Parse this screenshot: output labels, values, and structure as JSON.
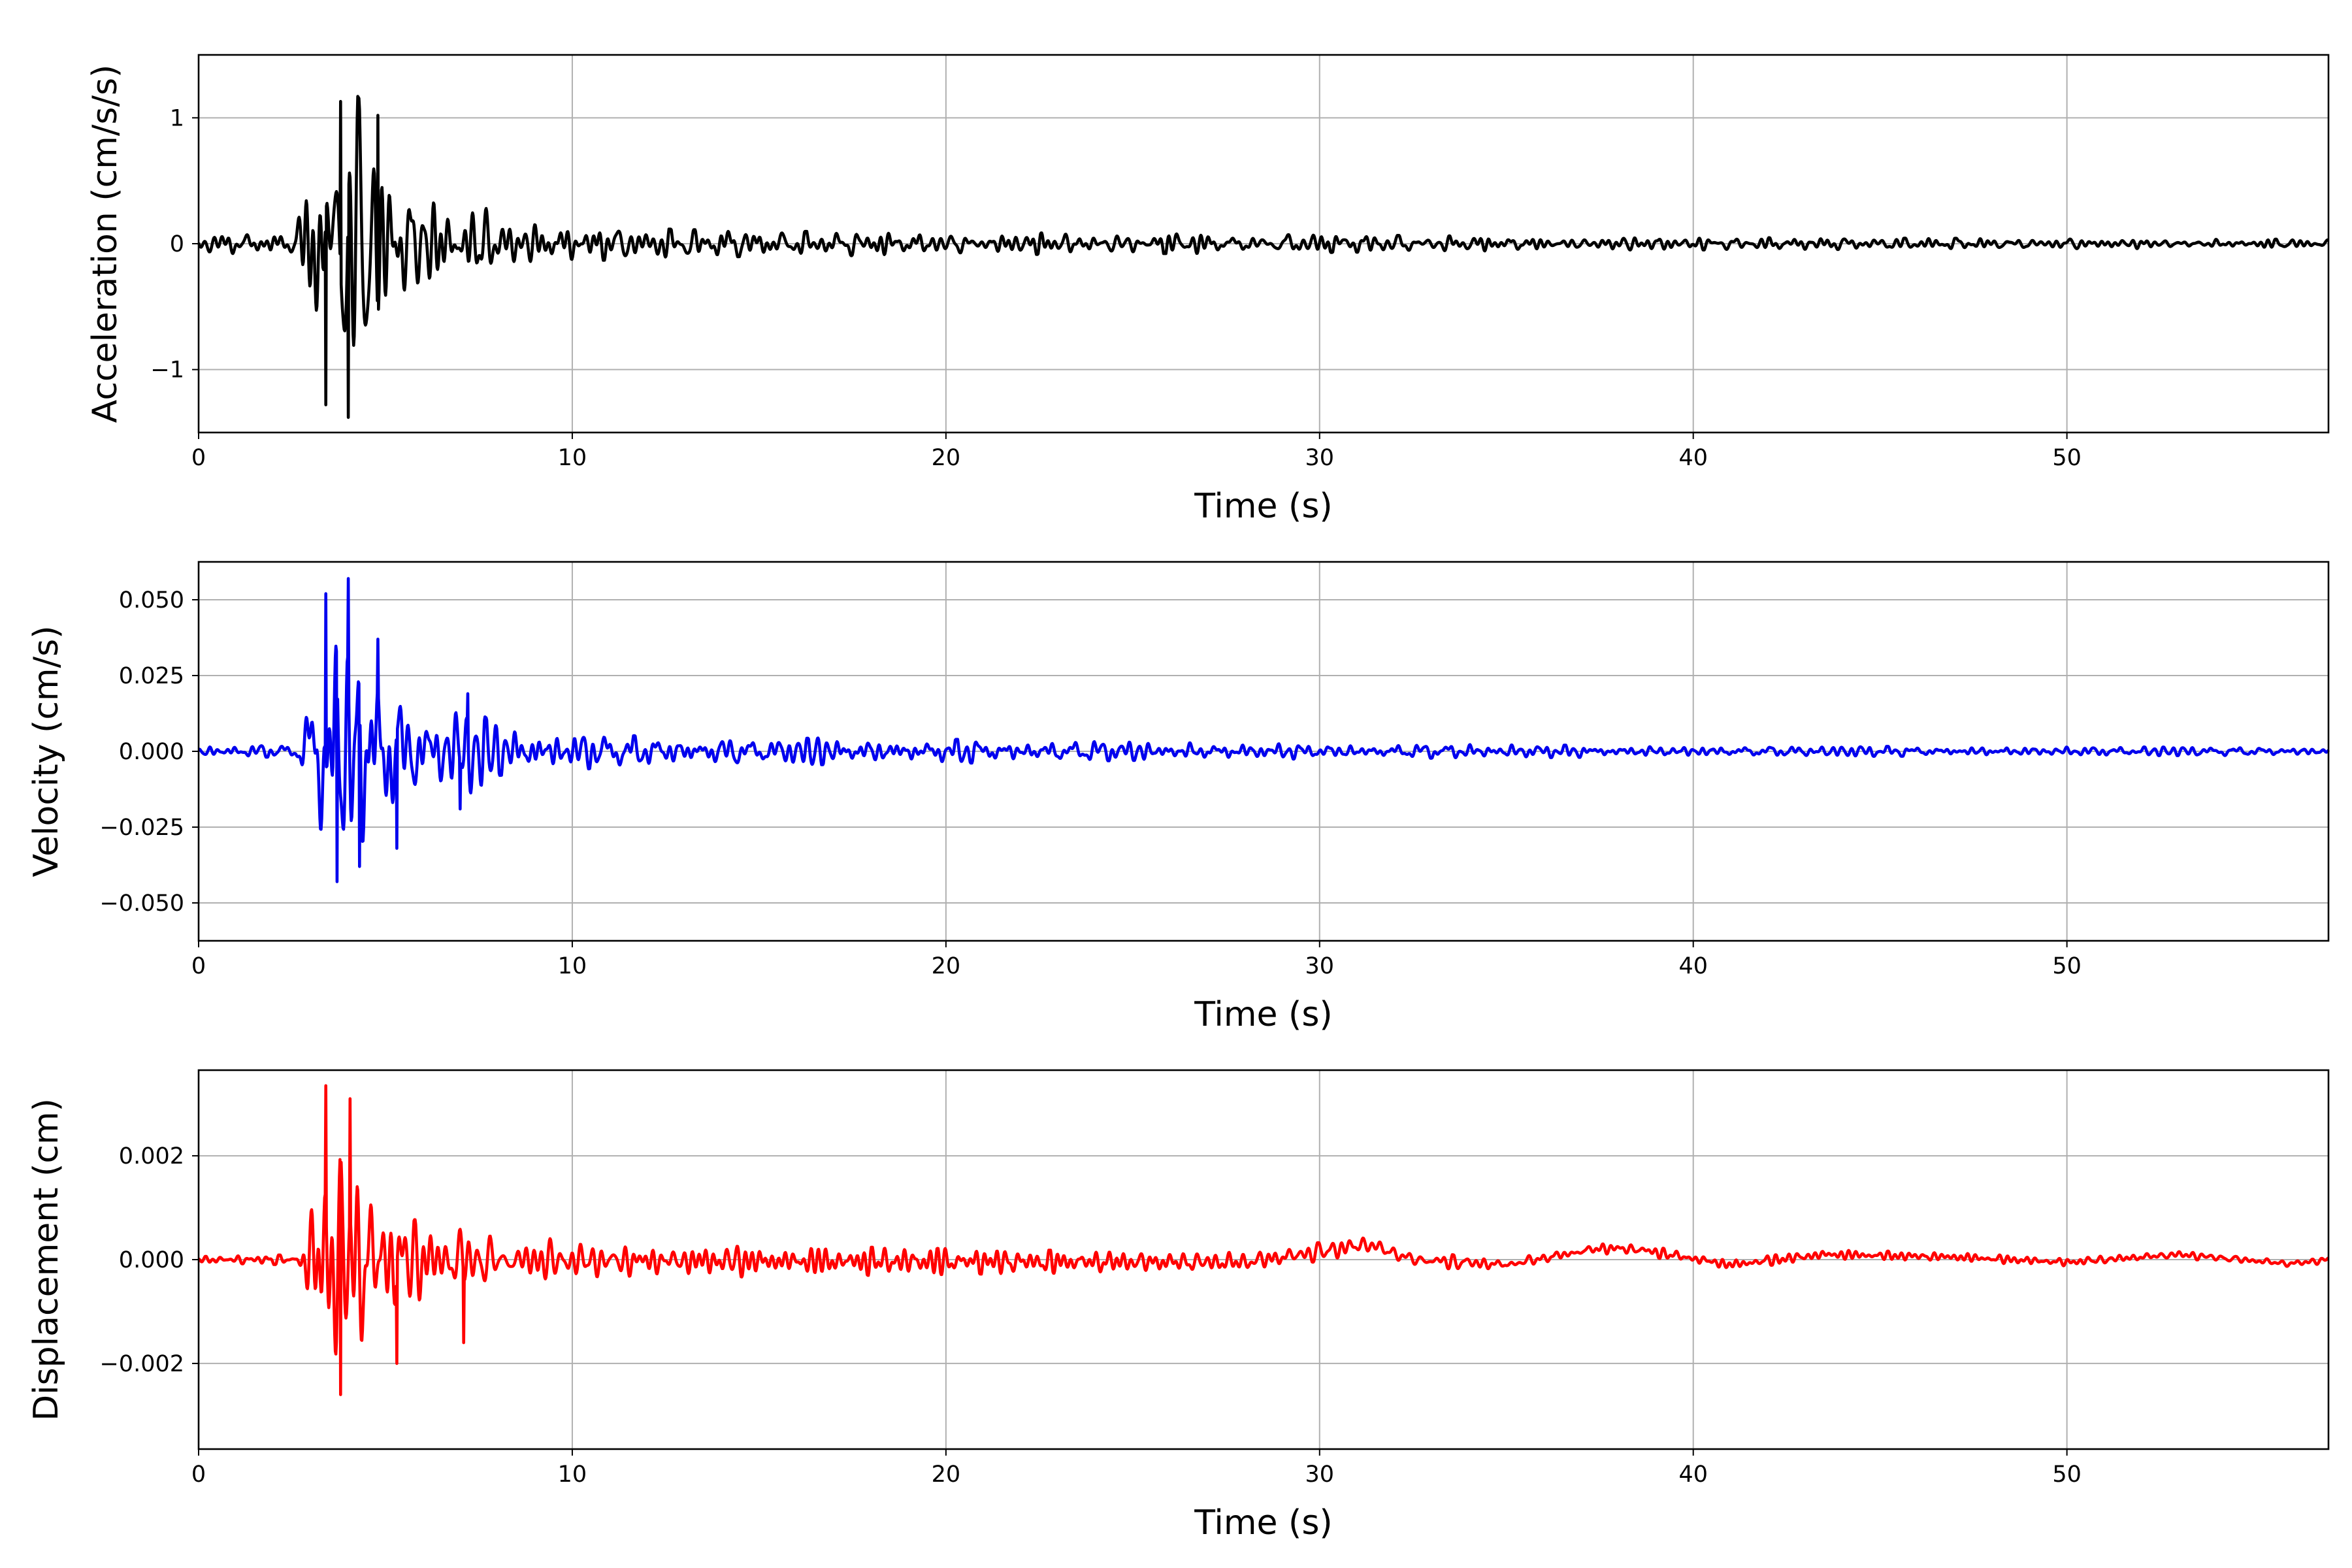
{
  "chart_data": [
    {
      "type": "line",
      "xlabel": "Time (s)",
      "ylabel": "Acceleration (cm/s/s)",
      "xlim": [
        0,
        57
      ],
      "ylim": [
        -1.5,
        1.5
      ],
      "xticks": [
        0,
        10,
        20,
        30,
        40,
        50
      ],
      "yticks": [
        -1,
        0,
        1
      ],
      "yticklabels": [
        "−1",
        "0",
        "1"
      ],
      "grid": true,
      "series": [
        {
          "color": "#000000",
          "envelope": {
            "x": [
              0,
              2.6,
              3.0,
              3.4,
              3.8,
              4.2,
              4.6,
              5.0,
              5.6,
              6.5,
              7.2,
              8.0,
              10,
              12,
              15,
              20,
              30,
              40,
              50,
              57
            ],
            "amplitude": [
              0.08,
              0.08,
              0.85,
              1.25,
              1.3,
              1.2,
              1.0,
              0.75,
              0.4,
              0.3,
              0.38,
              0.22,
              0.14,
              0.12,
              0.1,
              0.09,
              0.07,
              0.05,
              0.04,
              0.035
            ]
          },
          "peaks": [
            {
              "x": 3.4,
              "y": -1.28
            },
            {
              "x": 3.8,
              "y": 1.13
            },
            {
              "x": 4.0,
              "y": -1.38
            },
            {
              "x": 4.8,
              "y": 1.02
            }
          ]
        }
      ]
    },
    {
      "type": "line",
      "xlabel": "Time (s)",
      "ylabel": "Velocity (cm/s)",
      "xlim": [
        0,
        57
      ],
      "ylim": [
        -0.0625,
        0.0625
      ],
      "xticks": [
        0,
        10,
        20,
        30,
        40,
        50
      ],
      "yticks": [
        -0.05,
        -0.025,
        0,
        0.025,
        0.05
      ],
      "yticklabels": [
        "−0.050",
        "−0.025",
        "0.000",
        "0.025",
        "0.050"
      ],
      "grid": true,
      "series": [
        {
          "color": "#0000ee",
          "envelope": {
            "x": [
              0,
              2.6,
              3.0,
              3.4,
              3.8,
              4.2,
              4.6,
              5.0,
              5.6,
              6.5,
              7.2,
              8.0,
              10,
              12,
              15,
              17,
              20,
              25,
              30,
              40,
              50,
              57
            ],
            "amplitude": [
              0.0018,
              0.002,
              0.02,
              0.045,
              0.05,
              0.05,
              0.04,
              0.03,
              0.014,
              0.01,
              0.016,
              0.008,
              0.006,
              0.005,
              0.004,
              0.0045,
              0.004,
              0.003,
              0.0025,
              0.0018,
              0.0015,
              0.0013
            ]
          },
          "peaks": [
            {
              "x": 3.4,
              "y": 0.052
            },
            {
              "x": 3.7,
              "y": -0.043
            },
            {
              "x": 4.0,
              "y": 0.057
            },
            {
              "x": 4.3,
              "y": -0.038
            },
            {
              "x": 4.8,
              "y": 0.037
            },
            {
              "x": 5.3,
              "y": -0.032
            },
            {
              "x": 7.2,
              "y": 0.019
            },
            {
              "x": 7.0,
              "y": -0.019
            }
          ]
        }
      ]
    },
    {
      "type": "line",
      "xlabel": "Time (s)",
      "ylabel": "Displacement (cm)",
      "xlim": [
        0,
        57
      ],
      "ylim": [
        -0.00365,
        0.00365
      ],
      "xticks": [
        0,
        10,
        20,
        30,
        40,
        50
      ],
      "yticks": [
        -0.002,
        0,
        0.002
      ],
      "yticklabels": [
        "−0.002",
        "0.000",
        "0.002"
      ],
      "grid": true,
      "series": [
        {
          "color": "#ff0000",
          "envelope": {
            "x": [
              0,
              2.6,
              3.0,
              3.4,
              3.8,
              4.2,
              4.6,
              5.0,
              5.6,
              6.5,
              7.2,
              8.0,
              10,
              12,
              15,
              20,
              25,
              30,
              35,
              40,
              50,
              57
            ],
            "amplitude": [
              6e-05,
              0.0001,
              0.0009,
              0.002,
              0.0025,
              0.0025,
              0.0019,
              0.0015,
              0.0008,
              0.0007,
              0.0011,
              0.0005,
              0.0004,
              0.00035,
              0.0003,
              0.00025,
              0.0002,
              0.00018,
              0.00012,
              0.0001,
              8e-05,
              7e-05
            ]
          },
          "drift": {
            "x": [
              0,
              28,
              30,
              31.3,
              32.5,
              35,
              37.5,
              38.5,
              41,
              43.5,
              47,
              50,
              53,
              56,
              57
            ],
            "y": [
              0,
              -5e-05,
              0.00015,
              0.0003,
              0.0,
              -0.0001,
              0.00022,
              0.0002,
              -0.0001,
              0.0001,
              5e-05,
              -5e-05,
              0.0001,
              -8e-05,
              0.0
            ]
          },
          "peaks": [
            {
              "x": 3.4,
              "y": 0.00335
            },
            {
              "x": 3.8,
              "y": -0.0026
            },
            {
              "x": 4.05,
              "y": 0.0031
            },
            {
              "x": 5.3,
              "y": -0.002
            },
            {
              "x": 7.1,
              "y": -0.0016
            }
          ]
        }
      ]
    }
  ]
}
